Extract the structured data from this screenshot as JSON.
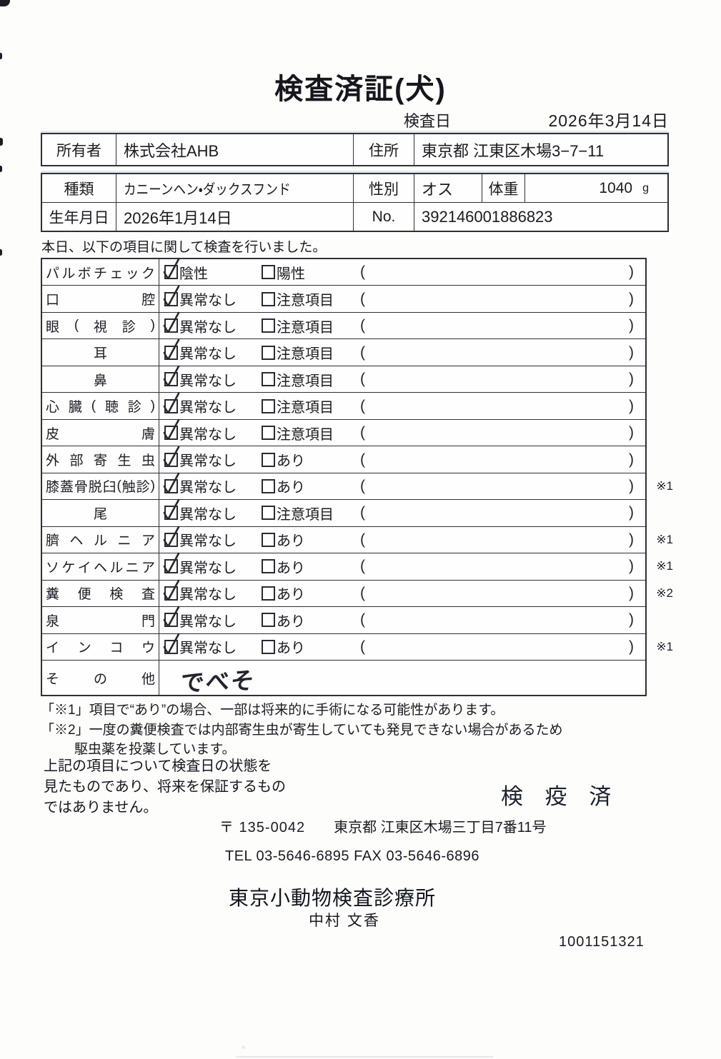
{
  "header": {
    "title": "検査済証(犬)",
    "exam_date_label": "検査日",
    "exam_date": "2026年3月14日"
  },
  "owner_table": {
    "owner_label": "所有者",
    "owner": "株式会社AHB",
    "address_label": "住所",
    "address": "東京都 江東区木場3−7−11"
  },
  "animal_table": {
    "breed_label": "種類",
    "breed": "カニーンヘン・ダックスフンド",
    "sex_label": "性別",
    "sex": "オス",
    "weight_label": "体重",
    "weight": "1040",
    "weight_unit": "g",
    "birth_label": "生年月日",
    "birth": "2026年1月14日",
    "no_label": "No.",
    "no": "392146001886823"
  },
  "intro": "本日、以下の項目に関して検査を行いました。",
  "inspection": {
    "paren_open": "(",
    "paren_close": ")",
    "rows": [
      {
        "label": "パルボチェック",
        "opt1": "陰性",
        "opt1_checked": true,
        "opt2": "陽性",
        "opt2_checked": false,
        "note": ""
      },
      {
        "label": "口腔",
        "opt1": "異常なし",
        "opt1_checked": true,
        "opt2": "注意項目",
        "opt2_checked": false,
        "note": ""
      },
      {
        "label": "眼(視診)",
        "opt1": "異常なし",
        "opt1_checked": true,
        "opt2": "注意項目",
        "opt2_checked": false,
        "note": ""
      },
      {
        "label": "耳",
        "opt1": "異常なし",
        "opt1_checked": true,
        "opt2": "注意項目",
        "opt2_checked": false,
        "note": ""
      },
      {
        "label": "鼻",
        "opt1": "異常なし",
        "opt1_checked": true,
        "opt2": "注意項目",
        "opt2_checked": false,
        "note": ""
      },
      {
        "label": "心臓(聴診)",
        "opt1": "異常なし",
        "opt1_checked": true,
        "opt2": "注意項目",
        "opt2_checked": false,
        "note": ""
      },
      {
        "label": "皮膚",
        "opt1": "異常なし",
        "opt1_checked": true,
        "opt2": "注意項目",
        "opt2_checked": false,
        "note": ""
      },
      {
        "label": "外部寄生虫",
        "opt1": "異常なし",
        "opt1_checked": true,
        "opt2": "あり",
        "opt2_checked": false,
        "note": ""
      },
      {
        "label": "膝蓋骨脱臼(触診)",
        "opt1": "異常なし",
        "opt1_checked": true,
        "opt2": "あり",
        "opt2_checked": false,
        "note": "※1"
      },
      {
        "label": "尾",
        "opt1": "異常なし",
        "opt1_checked": true,
        "opt2": "注意項目",
        "opt2_checked": false,
        "note": ""
      },
      {
        "label": "臍ヘルニア",
        "opt1": "異常なし",
        "opt1_checked": true,
        "opt2": "あり",
        "opt2_checked": false,
        "note": "※1"
      },
      {
        "label": "ソケイヘルニア",
        "opt1": "異常なし",
        "opt1_checked": true,
        "opt2": "あり",
        "opt2_checked": false,
        "note": "※1"
      },
      {
        "label": "糞便検査",
        "opt1": "異常なし",
        "opt1_checked": true,
        "opt2": "あり",
        "opt2_checked": false,
        "note": "※2"
      },
      {
        "label": "泉門",
        "opt1": "異常なし",
        "opt1_checked": true,
        "opt2": "あり",
        "opt2_checked": false,
        "note": ""
      },
      {
        "label": "インコウ",
        "opt1": "異常なし",
        "opt1_checked": true,
        "opt2": "あり",
        "opt2_checked": false,
        "note": "※1"
      }
    ],
    "other_label": "その他",
    "other_value": "でべそ"
  },
  "notes": [
    "「※1」項目で“あり”の場合、一部は将来的に手術になる可能性があります。",
    "「※2」一度の糞便検査では内部寄生虫が寄生していても発見できない場合があるため",
    "駆虫薬を投薬しています。"
  ],
  "statement": [
    "上記の項目について検査日の状態を",
    "見たものであり、将来を保証するもの",
    "ではありません。"
  ],
  "stamp": "検 疫 済",
  "footer": {
    "zip": "〒 135-0042",
    "address": "東京都 江東区木場三丁目7番11号",
    "tel_fax": "TEL 03-5646-6895  FAX 03-5646-6896",
    "clinic": "東京小動物検査診療所",
    "veterinarian": "中村 文香",
    "serial": "1001151321"
  },
  "colors": {
    "ink": "#1a1a20",
    "border": "#2f2f38",
    "paper": "#fdfdfc"
  }
}
